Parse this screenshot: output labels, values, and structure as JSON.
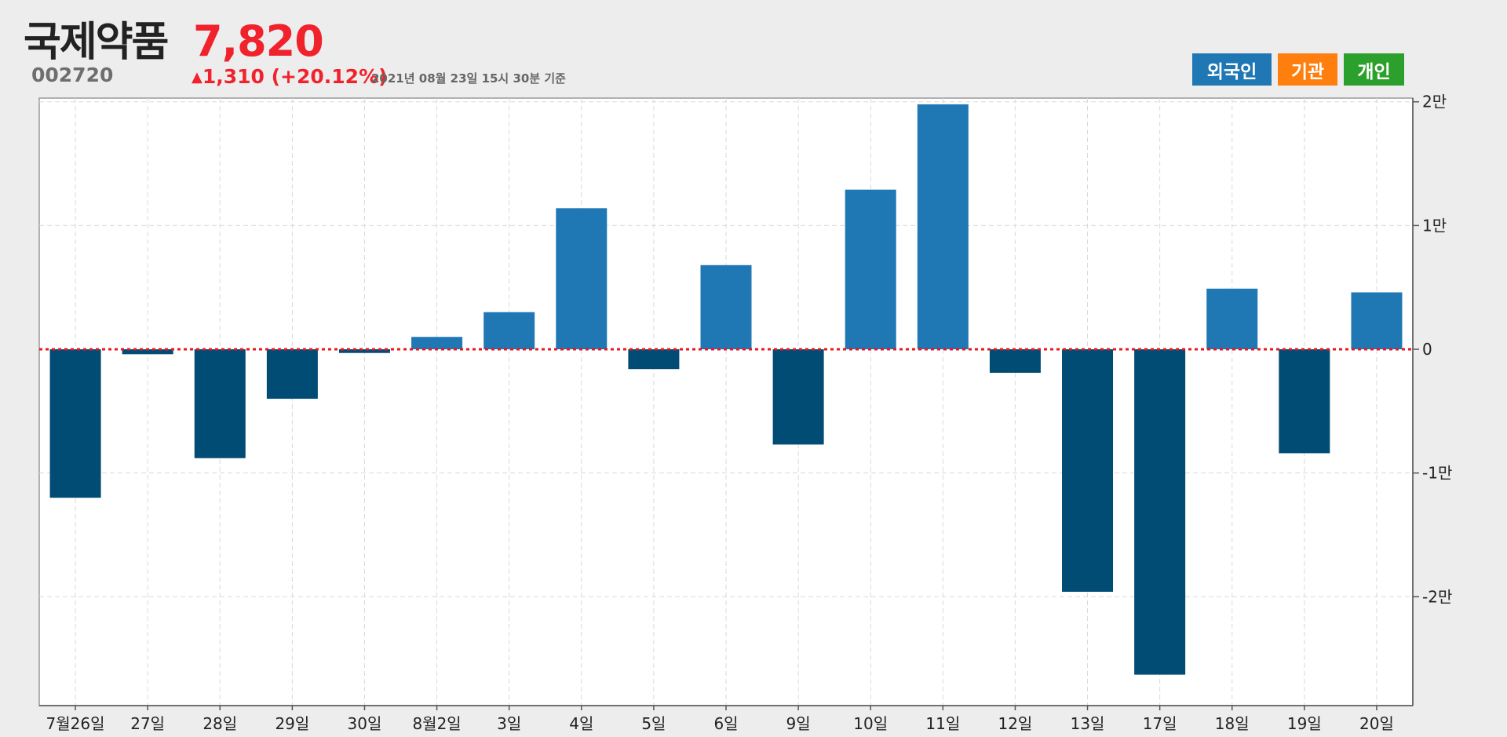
{
  "stock": {
    "name": "국제약품",
    "code": "002720",
    "price": "7,820",
    "change_arrow": "▲",
    "change": "1,310 (+20.12%)",
    "as_of": "2021년 08월 23일 15시 30분 기준"
  },
  "tabs": [
    {
      "label": "외국인",
      "color": "#1f77b4"
    },
    {
      "label": "기관",
      "color": "#ff7f0e"
    },
    {
      "label": "개인",
      "color": "#2ca02c"
    }
  ],
  "colors": {
    "positive_bar": "#1f77b4",
    "negative_bar": "#004c74",
    "zero_line": "#e8171f",
    "grid": "#d9d9d9"
  },
  "chart_data": {
    "type": "bar",
    "title": "",
    "xlabel": "",
    "ylabel": "",
    "categories": [
      "7월26일",
      "27일",
      "28일",
      "29일",
      "30일",
      "8월2일",
      "3일",
      "4일",
      "5일",
      "6일",
      "9일",
      "10일",
      "11일",
      "12일",
      "13일",
      "17일",
      "18일",
      "19일",
      "20일"
    ],
    "values": [
      -12000,
      -400,
      -8800,
      -4000,
      -300,
      1000,
      3000,
      11400,
      -1600,
      6800,
      -7700,
      12900,
      19800,
      -1900,
      -19600,
      -26300,
      4900,
      -8400,
      4600
    ],
    "ylim": [
      -28800,
      20300
    ],
    "yticks": [
      {
        "value": 20000,
        "label": "2만"
      },
      {
        "value": 10000,
        "label": "1만"
      },
      {
        "value": 0,
        "label": "0"
      },
      {
        "value": -10000,
        "label": "-1만"
      },
      {
        "value": -20000,
        "label": "-2만"
      }
    ],
    "grid": true,
    "legend": "none"
  }
}
